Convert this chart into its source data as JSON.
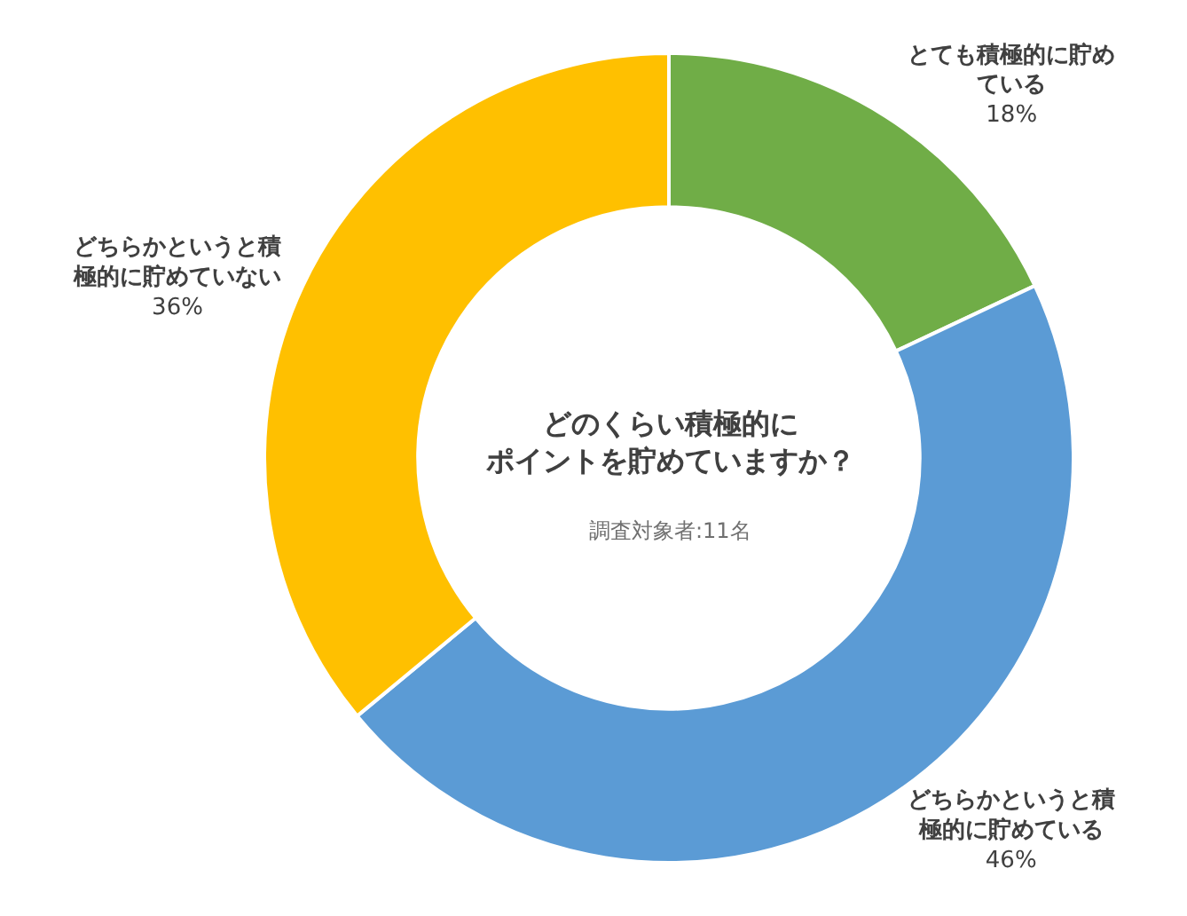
{
  "chart_data": {
    "type": "donut",
    "title": "どのくらい積極的にポイントを貯めていますか？",
    "subtitle": "調査対象者:11名",
    "categories": [
      "とても積極的に貯めている",
      "どちらかというと積極的に貯めている",
      "どちらかというと積極的に貯めていない"
    ],
    "values": [
      18,
      46,
      36
    ],
    "colors": [
      "#70ad47",
      "#5b9bd5",
      "#ffc000"
    ],
    "value_labels": [
      "18%",
      "46%",
      "36%"
    ],
    "legend": false
  }
}
